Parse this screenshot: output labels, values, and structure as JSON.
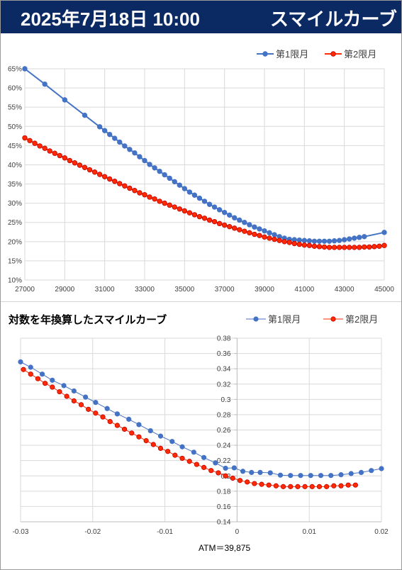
{
  "header": {
    "datetime": "2025年7月18日 10:00",
    "title": "スマイルカーブ"
  },
  "colors": {
    "header_bg": "#0b2a63",
    "series1": "#4472c4",
    "series2": "#ff2a00",
    "series2_edge": "#c00000"
  },
  "chart_data": [
    {
      "type": "line",
      "title": "",
      "xlim": [
        27000,
        45000
      ],
      "ylim": [
        0.1,
        0.65
      ],
      "xticks": [
        "27000",
        "29000",
        "31000",
        "33000",
        "35000",
        "37000",
        "39000",
        "41000",
        "43000",
        "45000"
      ],
      "yticks": [
        "10%",
        "15%",
        "20%",
        "25%",
        "30%",
        "35%",
        "40%",
        "45%",
        "50%",
        "55%",
        "60%",
        "65%"
      ],
      "legend_position": "top-right",
      "grid": true,
      "series": [
        {
          "name": "第1限月",
          "points": [
            [
              27000,
              0.65
            ],
            [
              28000,
              0.61
            ],
            [
              29000,
              0.569
            ],
            [
              30000,
              0.529
            ],
            [
              30750,
              0.499
            ],
            [
              31000,
              0.489
            ],
            [
              31250,
              0.479
            ],
            [
              31500,
              0.469
            ],
            [
              31750,
              0.459
            ],
            [
              32000,
              0.449
            ],
            [
              32250,
              0.44
            ],
            [
              32500,
              0.431
            ],
            [
              32750,
              0.421
            ],
            [
              33000,
              0.411
            ],
            [
              33250,
              0.401
            ],
            [
              33500,
              0.392
            ],
            [
              33750,
              0.383
            ],
            [
              34000,
              0.374
            ],
            [
              34250,
              0.365
            ],
            [
              34500,
              0.356
            ],
            [
              34750,
              0.347
            ],
            [
              35000,
              0.338
            ],
            [
              35250,
              0.329
            ],
            [
              35500,
              0.321
            ],
            [
              35750,
              0.313
            ],
            [
              36000,
              0.305
            ],
            [
              36250,
              0.297
            ],
            [
              36500,
              0.29
            ],
            [
              36750,
              0.283
            ],
            [
              37000,
              0.276
            ],
            [
              37250,
              0.269
            ],
            [
              37500,
              0.262
            ],
            [
              37750,
              0.256
            ],
            [
              38000,
              0.25
            ],
            [
              38250,
              0.244
            ],
            [
              38500,
              0.238
            ],
            [
              38750,
              0.233
            ],
            [
              39000,
              0.228
            ],
            [
              39250,
              0.223
            ],
            [
              39500,
              0.218
            ],
            [
              39750,
              0.213
            ],
            [
              40000,
              0.209
            ],
            [
              40250,
              0.206
            ],
            [
              40500,
              0.205
            ],
            [
              40750,
              0.204
            ],
            [
              41000,
              0.203
            ],
            [
              41250,
              0.202
            ],
            [
              41500,
              0.201
            ],
            [
              41750,
              0.201
            ],
            [
              42000,
              0.201
            ],
            [
              42250,
              0.201
            ],
            [
              42500,
              0.202
            ],
            [
              42750,
              0.203
            ],
            [
              43000,
              0.205
            ],
            [
              43250,
              0.207
            ],
            [
              43500,
              0.209
            ],
            [
              43750,
              0.211
            ],
            [
              44000,
              0.213
            ],
            [
              45000,
              0.224
            ]
          ]
        },
        {
          "name": "第2限月",
          "points": [
            [
              27000,
              0.47
            ],
            [
              27250,
              0.463
            ],
            [
              27500,
              0.456
            ],
            [
              27750,
              0.449
            ],
            [
              28000,
              0.443
            ],
            [
              28250,
              0.436
            ],
            [
              28500,
              0.43
            ],
            [
              28750,
              0.424
            ],
            [
              29000,
              0.418
            ],
            [
              29250,
              0.411
            ],
            [
              29500,
              0.405
            ],
            [
              29750,
              0.399
            ],
            [
              30000,
              0.393
            ],
            [
              30250,
              0.387
            ],
            [
              30500,
              0.381
            ],
            [
              30750,
              0.375
            ],
            [
              31000,
              0.369
            ],
            [
              31250,
              0.363
            ],
            [
              31500,
              0.357
            ],
            [
              31750,
              0.351
            ],
            [
              32000,
              0.345
            ],
            [
              32250,
              0.339
            ],
            [
              32500,
              0.333
            ],
            [
              32750,
              0.327
            ],
            [
              33000,
              0.322
            ],
            [
              33250,
              0.316
            ],
            [
              33500,
              0.311
            ],
            [
              33750,
              0.305
            ],
            [
              34000,
              0.3
            ],
            [
              34250,
              0.295
            ],
            [
              34500,
              0.29
            ],
            [
              34750,
              0.285
            ],
            [
              35000,
              0.28
            ],
            [
              35250,
              0.275
            ],
            [
              35500,
              0.27
            ],
            [
              35750,
              0.265
            ],
            [
              36000,
              0.261
            ],
            [
              36250,
              0.256
            ],
            [
              36500,
              0.252
            ],
            [
              36750,
              0.247
            ],
            [
              37000,
              0.243
            ],
            [
              37250,
              0.239
            ],
            [
              37500,
              0.235
            ],
            [
              37750,
              0.231
            ],
            [
              38000,
              0.227
            ],
            [
              38250,
              0.223
            ],
            [
              38500,
              0.219
            ],
            [
              38750,
              0.216
            ],
            [
              39000,
              0.212
            ],
            [
              39250,
              0.209
            ],
            [
              39500,
              0.206
            ],
            [
              39750,
              0.203
            ],
            [
              40000,
              0.2
            ],
            [
              40250,
              0.198
            ],
            [
              40500,
              0.195
            ],
            [
              40750,
              0.193
            ],
            [
              41000,
              0.191
            ],
            [
              41250,
              0.19
            ],
            [
              41500,
              0.188
            ],
            [
              41750,
              0.187
            ],
            [
              42000,
              0.186
            ],
            [
              42250,
              0.185
            ],
            [
              42500,
              0.185
            ],
            [
              42750,
              0.185
            ],
            [
              43000,
              0.185
            ],
            [
              43250,
              0.185
            ],
            [
              43500,
              0.185
            ],
            [
              43750,
              0.185
            ],
            [
              44000,
              0.186
            ],
            [
              44250,
              0.186
            ],
            [
              44500,
              0.187
            ],
            [
              44750,
              0.188
            ],
            [
              45000,
              0.19
            ]
          ]
        }
      ]
    },
    {
      "type": "line",
      "title": "対数を年換算したスマイルカーブ",
      "xlim": [
        -0.03,
        0.02
      ],
      "ylim": [
        0.14,
        0.38
      ],
      "xticks": [
        "-0.03",
        "-0.02",
        "-0.01",
        "0",
        "0.01",
        "0.02"
      ],
      "yticks": [
        "0.14",
        "0.16",
        "0.18",
        "0.2",
        "0.22",
        "0.24",
        "0.26",
        "0.28",
        "0.3",
        "0.32",
        "0.34",
        "0.36",
        "0.38"
      ],
      "legend_position": "top-right",
      "grid": true,
      "annotation": "ATM＝39,875",
      "series": [
        {
          "name": "第1限月",
          "points": [
            [
              -0.03,
              0.349
            ],
            [
              -0.0286,
              0.342
            ],
            [
              -0.027,
              0.333
            ],
            [
              -0.0256,
              0.325
            ],
            [
              -0.024,
              0.318
            ],
            [
              -0.0226,
              0.311
            ],
            [
              -0.021,
              0.303
            ],
            [
              -0.0196,
              0.296
            ],
            [
              -0.018,
              0.288
            ],
            [
              -0.0166,
              0.281
            ],
            [
              -0.015,
              0.274
            ],
            [
              -0.0136,
              0.267
            ],
            [
              -0.012,
              0.259
            ],
            [
              -0.0106,
              0.252
            ],
            [
              -0.009,
              0.245
            ],
            [
              -0.0076,
              0.238
            ],
            [
              -0.006,
              0.231
            ],
            [
              -0.0046,
              0.224
            ],
            [
              -0.003,
              0.217
            ],
            [
              -0.0016,
              0.21
            ],
            [
              -0.0004,
              0.2105
            ],
            [
              0.0008,
              0.206
            ],
            [
              0.002,
              0.2045
            ],
            [
              0.0032,
              0.2045
            ],
            [
              0.0046,
              0.204
            ],
            [
              0.006,
              0.201
            ],
            [
              0.0074,
              0.2005
            ],
            [
              0.0088,
              0.2005
            ],
            [
              0.0102,
              0.2005
            ],
            [
              0.0116,
              0.2005
            ],
            [
              0.013,
              0.2005
            ],
            [
              0.0144,
              0.2015
            ],
            [
              0.0158,
              0.203
            ],
            [
              0.0172,
              0.2045
            ],
            [
              0.0186,
              0.207
            ],
            [
              0.02,
              0.2095
            ]
          ]
        },
        {
          "name": "第2限月",
          "points": [
            [
              -0.0296,
              0.339
            ],
            [
              -0.0286,
              0.333
            ],
            [
              -0.0276,
              0.327
            ],
            [
              -0.0266,
              0.321
            ],
            [
              -0.0256,
              0.316
            ],
            [
              -0.0246,
              0.31
            ],
            [
              -0.0236,
              0.304
            ],
            [
              -0.0226,
              0.298
            ],
            [
              -0.0216,
              0.293
            ],
            [
              -0.0206,
              0.287
            ],
            [
              -0.0196,
              0.282
            ],
            [
              -0.0186,
              0.277
            ],
            [
              -0.0176,
              0.271
            ],
            [
              -0.0166,
              0.266
            ],
            [
              -0.0156,
              0.261
            ],
            [
              -0.0146,
              0.256
            ],
            [
              -0.0136,
              0.251
            ],
            [
              -0.0126,
              0.246
            ],
            [
              -0.0116,
              0.241
            ],
            [
              -0.0106,
              0.236
            ],
            [
              -0.0096,
              0.232
            ],
            [
              -0.0086,
              0.227
            ],
            [
              -0.0076,
              0.223
            ],
            [
              -0.0066,
              0.219
            ],
            [
              -0.0056,
              0.215
            ],
            [
              -0.0046,
              0.211
            ],
            [
              -0.0036,
              0.207
            ],
            [
              -0.0026,
              0.204
            ],
            [
              -0.0016,
              0.2
            ],
            [
              -0.0006,
              0.197
            ],
            [
              0.0004,
              0.194
            ],
            [
              0.0014,
              0.192
            ],
            [
              0.0024,
              0.19
            ],
            [
              0.0034,
              0.189
            ],
            [
              0.0044,
              0.188
            ],
            [
              0.0054,
              0.187
            ],
            [
              0.0064,
              0.186
            ],
            [
              0.0074,
              0.186
            ],
            [
              0.0084,
              0.186
            ],
            [
              0.0094,
              0.186
            ],
            [
              0.0104,
              0.186
            ],
            [
              0.0114,
              0.186
            ],
            [
              0.0124,
              0.186
            ],
            [
              0.0134,
              0.187
            ],
            [
              0.0144,
              0.187
            ],
            [
              0.0154,
              0.188
            ],
            [
              0.0164,
              0.188
            ]
          ]
        }
      ]
    }
  ]
}
